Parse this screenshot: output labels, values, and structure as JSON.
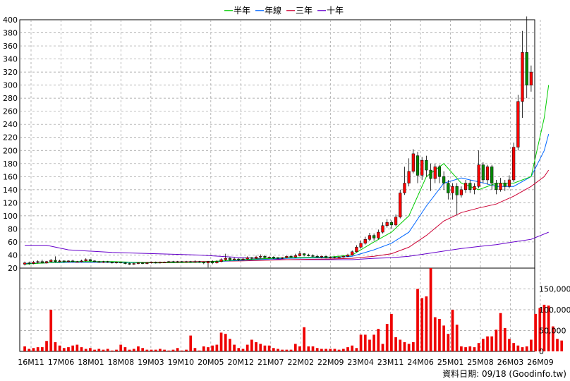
{
  "chart_data": {
    "type": "candlestick",
    "legend": [
      {
        "name": "半年",
        "color": "#00cc00"
      },
      {
        "name": "年線",
        "color": "#0066ff"
      },
      {
        "name": "三年",
        "color": "#cc0033"
      },
      {
        "name": "十年",
        "color": "#6600cc"
      }
    ],
    "price_axis": {
      "ylim": [
        20,
        400
      ],
      "ticks": [
        20,
        40,
        60,
        80,
        100,
        120,
        140,
        160,
        180,
        200,
        220,
        240,
        260,
        280,
        300,
        320,
        340,
        360,
        380,
        400
      ]
    },
    "volume_axis": {
      "ylim": [
        0,
        200000
      ],
      "ticks": [
        0,
        50000,
        100000,
        150000
      ],
      "tick_labels": [
        "0",
        "50,000",
        "100,000",
        "150,000"
      ]
    },
    "x_labels": [
      "16M11",
      "17M06",
      "18M01",
      "18M08",
      "19M03",
      "19M10",
      "20M05",
      "20M12",
      "21M07",
      "22M02",
      "22M09",
      "23M04",
      "23M11",
      "24M06",
      "25M01",
      "25M08",
      "26M03",
      "26M09"
    ],
    "candles": [
      {
        "o": 26,
        "c": 28,
        "h": 30,
        "l": 24
      },
      {
        "o": 28,
        "c": 27,
        "h": 30,
        "l": 25
      },
      {
        "o": 27,
        "c": 29,
        "h": 31,
        "l": 26
      },
      {
        "o": 29,
        "c": 30,
        "h": 32,
        "l": 27
      },
      {
        "o": 30,
        "c": 28,
        "h": 33,
        "l": 27
      },
      {
        "o": 28,
        "c": 30,
        "h": 31,
        "l": 27
      },
      {
        "o": 30,
        "c": 32,
        "h": 34,
        "l": 29
      },
      {
        "o": 32,
        "c": 30,
        "h": 38,
        "l": 29
      },
      {
        "o": 30,
        "c": 31,
        "h": 33,
        "l": 29
      },
      {
        "o": 31,
        "c": 30,
        "h": 32,
        "l": 28
      },
      {
        "o": 30,
        "c": 31,
        "h": 32,
        "l": 29
      },
      {
        "o": 31,
        "c": 30,
        "h": 33,
        "l": 29
      },
      {
        "o": 30,
        "c": 30,
        "h": 31,
        "l": 29
      },
      {
        "o": 30,
        "c": 31,
        "h": 33,
        "l": 29
      },
      {
        "o": 31,
        "c": 33,
        "h": 35,
        "l": 30
      },
      {
        "o": 33,
        "c": 31,
        "h": 34,
        "l": 30
      },
      {
        "o": 31,
        "c": 30,
        "h": 32,
        "l": 29
      },
      {
        "o": 30,
        "c": 29,
        "h": 31,
        "l": 28
      },
      {
        "o": 29,
        "c": 30,
        "h": 31,
        "l": 28
      },
      {
        "o": 30,
        "c": 29,
        "h": 31,
        "l": 28
      },
      {
        "o": 29,
        "c": 28,
        "h": 30,
        "l": 27
      },
      {
        "o": 28,
        "c": 29,
        "h": 30,
        "l": 27
      },
      {
        "o": 29,
        "c": 28,
        "h": 29,
        "l": 27
      },
      {
        "o": 28,
        "c": 27,
        "h": 29,
        "l": 26
      },
      {
        "o": 27,
        "c": 26,
        "h": 28,
        "l": 25
      },
      {
        "o": 26,
        "c": 27,
        "h": 28,
        "l": 25
      },
      {
        "o": 27,
        "c": 28,
        "h": 29,
        "l": 26
      },
      {
        "o": 28,
        "c": 27,
        "h": 29,
        "l": 26
      },
      {
        "o": 27,
        "c": 28,
        "h": 29,
        "l": 26
      },
      {
        "o": 28,
        "c": 29,
        "h": 30,
        "l": 27
      },
      {
        "o": 29,
        "c": 28,
        "h": 30,
        "l": 27
      },
      {
        "o": 28,
        "c": 29,
        "h": 30,
        "l": 27
      },
      {
        "o": 29,
        "c": 29,
        "h": 30,
        "l": 28
      },
      {
        "o": 29,
        "c": 30,
        "h": 31,
        "l": 28
      },
      {
        "o": 30,
        "c": 29,
        "h": 31,
        "l": 28
      },
      {
        "o": 29,
        "c": 30,
        "h": 31,
        "l": 28
      },
      {
        "o": 30,
        "c": 29,
        "h": 31,
        "l": 28
      },
      {
        "o": 29,
        "c": 30,
        "h": 31,
        "l": 28
      },
      {
        "o": 30,
        "c": 29,
        "h": 31,
        "l": 28
      },
      {
        "o": 29,
        "c": 30,
        "h": 32,
        "l": 28
      },
      {
        "o": 30,
        "c": 29,
        "h": 31,
        "l": 28
      },
      {
        "o": 29,
        "c": 28,
        "h": 30,
        "l": 26
      },
      {
        "o": 28,
        "c": 30,
        "h": 31,
        "l": 21
      },
      {
        "o": 30,
        "c": 28,
        "h": 32,
        "l": 26
      },
      {
        "o": 28,
        "c": 30,
        "h": 32,
        "l": 27
      },
      {
        "o": 30,
        "c": 33,
        "h": 35,
        "l": 29
      },
      {
        "o": 33,
        "c": 35,
        "h": 42,
        "l": 31
      },
      {
        "o": 35,
        "c": 33,
        "h": 37,
        "l": 31
      },
      {
        "o": 33,
        "c": 34,
        "h": 36,
        "l": 32
      },
      {
        "o": 34,
        "c": 33,
        "h": 35,
        "l": 31
      },
      {
        "o": 33,
        "c": 34,
        "h": 36,
        "l": 32
      },
      {
        "o": 34,
        "c": 36,
        "h": 38,
        "l": 33
      },
      {
        "o": 36,
        "c": 35,
        "h": 37,
        "l": 33
      },
      {
        "o": 35,
        "c": 37,
        "h": 39,
        "l": 34
      },
      {
        "o": 37,
        "c": 38,
        "h": 41,
        "l": 35
      },
      {
        "o": 38,
        "c": 36,
        "h": 40,
        "l": 35
      },
      {
        "o": 36,
        "c": 37,
        "h": 38,
        "l": 35
      },
      {
        "o": 37,
        "c": 36,
        "h": 38,
        "l": 34
      },
      {
        "o": 36,
        "c": 35,
        "h": 37,
        "l": 34
      },
      {
        "o": 35,
        "c": 36,
        "h": 37,
        "l": 34
      },
      {
        "o": 36,
        "c": 38,
        "h": 39,
        "l": 35
      },
      {
        "o": 38,
        "c": 37,
        "h": 40,
        "l": 36
      },
      {
        "o": 37,
        "c": 39,
        "h": 42,
        "l": 36
      },
      {
        "o": 39,
        "c": 42,
        "h": 46,
        "l": 38
      },
      {
        "o": 42,
        "c": 40,
        "h": 43,
        "l": 38
      },
      {
        "o": 40,
        "c": 39,
        "h": 42,
        "l": 38
      },
      {
        "o": 39,
        "c": 38,
        "h": 41,
        "l": 37
      },
      {
        "o": 38,
        "c": 37,
        "h": 40,
        "l": 36
      },
      {
        "o": 37,
        "c": 38,
        "h": 39,
        "l": 35
      },
      {
        "o": 38,
        "c": 36,
        "h": 39,
        "l": 35
      },
      {
        "o": 36,
        "c": 37,
        "h": 38,
        "l": 35
      },
      {
        "o": 37,
        "c": 36,
        "h": 38,
        "l": 35
      },
      {
        "o": 36,
        "c": 37,
        "h": 38,
        "l": 35
      },
      {
        "o": 37,
        "c": 38,
        "h": 39,
        "l": 36
      },
      {
        "o": 38,
        "c": 40,
        "h": 42,
        "l": 37
      },
      {
        "o": 40,
        "c": 45,
        "h": 47,
        "l": 39
      },
      {
        "o": 45,
        "c": 52,
        "h": 55,
        "l": 44
      },
      {
        "o": 52,
        "c": 58,
        "h": 62,
        "l": 50
      },
      {
        "o": 58,
        "c": 64,
        "h": 68,
        "l": 56
      },
      {
        "o": 64,
        "c": 70,
        "h": 74,
        "l": 61
      },
      {
        "o": 70,
        "c": 66,
        "h": 73,
        "l": 62
      },
      {
        "o": 66,
        "c": 75,
        "h": 79,
        "l": 64
      },
      {
        "o": 75,
        "c": 85,
        "h": 90,
        "l": 73
      },
      {
        "o": 85,
        "c": 90,
        "h": 95,
        "l": 82
      },
      {
        "o": 90,
        "c": 86,
        "h": 93,
        "l": 80
      },
      {
        "o": 86,
        "c": 98,
        "h": 102,
        "l": 84
      },
      {
        "o": 98,
        "c": 135,
        "h": 140,
        "l": 96
      },
      {
        "o": 135,
        "c": 150,
        "h": 175,
        "l": 132
      },
      {
        "o": 150,
        "c": 168,
        "h": 188,
        "l": 145
      },
      {
        "o": 168,
        "c": 195,
        "h": 202,
        "l": 165
      },
      {
        "o": 192,
        "c": 162,
        "h": 198,
        "l": 150
      },
      {
        "o": 162,
        "c": 185,
        "h": 190,
        "l": 155
      },
      {
        "o": 185,
        "c": 170,
        "h": 192,
        "l": 160
      },
      {
        "o": 170,
        "c": 157,
        "h": 180,
        "l": 138
      },
      {
        "o": 157,
        "c": 175,
        "h": 180,
        "l": 150
      },
      {
        "o": 175,
        "c": 160,
        "h": 178,
        "l": 150
      },
      {
        "o": 160,
        "c": 150,
        "h": 168,
        "l": 140
      },
      {
        "o": 150,
        "c": 135,
        "h": 155,
        "l": 125
      },
      {
        "o": 135,
        "c": 145,
        "h": 150,
        "l": 125
      },
      {
        "o": 145,
        "c": 132,
        "h": 150,
        "l": 102
      },
      {
        "o": 132,
        "c": 140,
        "h": 145,
        "l": 128
      },
      {
        "o": 140,
        "c": 150,
        "h": 155,
        "l": 135
      },
      {
        "o": 150,
        "c": 140,
        "h": 155,
        "l": 135
      },
      {
        "o": 140,
        "c": 145,
        "h": 150,
        "l": 133
      },
      {
        "o": 145,
        "c": 178,
        "h": 200,
        "l": 142
      },
      {
        "o": 178,
        "c": 155,
        "h": 182,
        "l": 150
      },
      {
        "o": 155,
        "c": 175,
        "h": 178,
        "l": 148
      },
      {
        "o": 175,
        "c": 150,
        "h": 178,
        "l": 140
      },
      {
        "o": 150,
        "c": 140,
        "h": 155,
        "l": 133
      },
      {
        "o": 140,
        "c": 150,
        "h": 158,
        "l": 137
      },
      {
        "o": 150,
        "c": 145,
        "h": 155,
        "l": 138
      },
      {
        "o": 145,
        "c": 155,
        "h": 162,
        "l": 142
      },
      {
        "o": 155,
        "c": 205,
        "h": 212,
        "l": 152
      },
      {
        "o": 205,
        "c": 275,
        "h": 285,
        "l": 200
      },
      {
        "o": 275,
        "c": 350,
        "h": 383,
        "l": 250
      },
      {
        "o": 350,
        "c": 300,
        "h": 405,
        "l": 280
      },
      {
        "o": 300,
        "c": 320,
        "h": 330,
        "l": 290
      }
    ],
    "ma_half_year": [
      [
        0,
        26
      ],
      [
        10,
        30
      ],
      [
        20,
        30
      ],
      [
        30,
        28
      ],
      [
        40,
        29
      ],
      [
        50,
        33
      ],
      [
        60,
        36
      ],
      [
        70,
        37
      ],
      [
        75,
        40
      ],
      [
        80,
        60
      ],
      [
        84,
        75
      ],
      [
        88,
        100
      ],
      [
        92,
        160
      ],
      [
        96,
        180
      ],
      [
        100,
        150
      ],
      [
        104,
        140
      ],
      [
        108,
        150
      ],
      [
        112,
        150
      ],
      [
        116,
        160
      ],
      [
        119,
        250
      ],
      [
        120,
        300
      ]
    ],
    "ma_year": [
      [
        0,
        27
      ],
      [
        10,
        29
      ],
      [
        20,
        29
      ],
      [
        30,
        28
      ],
      [
        40,
        29
      ],
      [
        50,
        32
      ],
      [
        60,
        35
      ],
      [
        70,
        36
      ],
      [
        75,
        38
      ],
      [
        80,
        48
      ],
      [
        84,
        58
      ],
      [
        88,
        75
      ],
      [
        92,
        115
      ],
      [
        96,
        150
      ],
      [
        100,
        158
      ],
      [
        104,
        152
      ],
      [
        108,
        145
      ],
      [
        112,
        145
      ],
      [
        116,
        160
      ],
      [
        119,
        200
      ],
      [
        120,
        225
      ]
    ],
    "ma_three_year": [
      [
        0,
        27
      ],
      [
        10,
        29
      ],
      [
        20,
        29
      ],
      [
        30,
        29
      ],
      [
        40,
        30
      ],
      [
        50,
        31
      ],
      [
        60,
        33
      ],
      [
        70,
        34
      ],
      [
        75,
        35
      ],
      [
        80,
        38
      ],
      [
        84,
        42
      ],
      [
        88,
        52
      ],
      [
        92,
        70
      ],
      [
        96,
        92
      ],
      [
        100,
        105
      ],
      [
        104,
        112
      ],
      [
        108,
        118
      ],
      [
        112,
        130
      ],
      [
        116,
        145
      ],
      [
        119,
        160
      ],
      [
        120,
        170
      ]
    ],
    "ma_ten_year": [
      [
        0,
        55
      ],
      [
        5,
        55
      ],
      [
        10,
        48
      ],
      [
        20,
        44
      ],
      [
        30,
        42
      ],
      [
        40,
        40
      ],
      [
        50,
        36
      ],
      [
        60,
        33
      ],
      [
        70,
        33
      ],
      [
        75,
        33
      ],
      [
        80,
        35
      ],
      [
        84,
        36
      ],
      [
        88,
        38
      ],
      [
        92,
        42
      ],
      [
        96,
        46
      ],
      [
        100,
        50
      ],
      [
        104,
        53
      ],
      [
        108,
        56
      ],
      [
        112,
        60
      ],
      [
        116,
        64
      ],
      [
        120,
        75
      ]
    ],
    "volume": [
      12,
      6,
      8,
      10,
      10,
      25,
      100,
      22,
      14,
      8,
      10,
      14,
      16,
      10,
      6,
      8,
      4,
      6,
      4,
      6,
      2,
      4,
      16,
      10,
      4,
      6,
      12,
      8,
      4,
      4,
      4,
      6,
      4,
      2,
      4,
      8,
      2,
      4,
      38,
      8,
      2,
      12,
      10,
      14,
      16,
      45,
      42,
      30,
      16,
      8,
      6,
      16,
      28,
      22,
      18,
      14,
      14,
      8,
      6,
      4,
      4,
      4,
      18,
      12,
      58,
      12,
      12,
      8,
      6,
      6,
      6,
      6,
      4,
      6,
      10,
      14,
      8,
      40,
      40,
      28,
      40,
      54,
      18,
      66,
      90,
      34,
      28,
      22,
      18,
      22,
      150,
      128,
      132,
      200,
      82,
      78,
      62,
      42,
      100,
      64,
      12,
      10,
      12,
      10,
      20,
      30,
      36,
      36,
      52,
      92,
      56,
      30,
      20,
      14,
      10,
      12,
      28,
      90,
      104,
      112,
      110,
      60,
      30,
      26
    ]
  },
  "footer": {
    "date_text": "資料日期: 09/18  (Goodinfo.tw)"
  }
}
